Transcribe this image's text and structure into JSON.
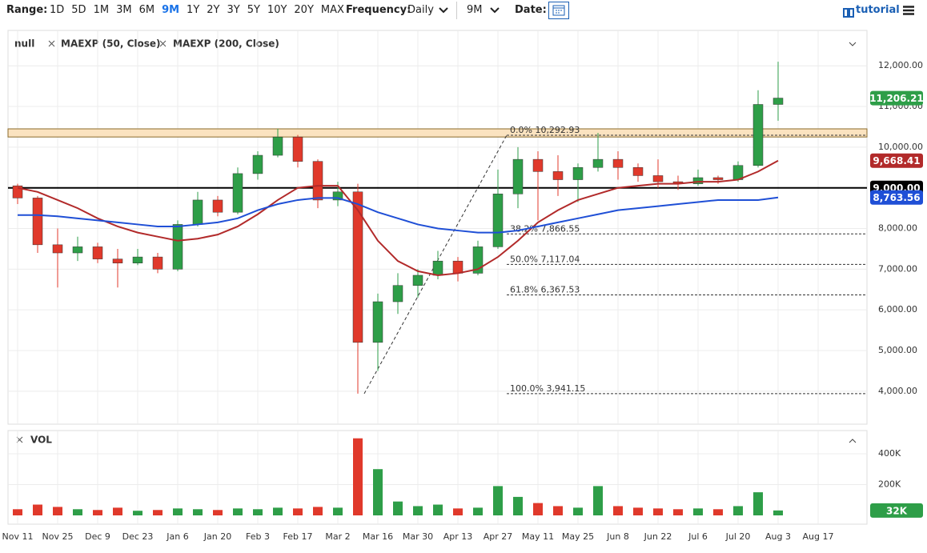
{
  "toolbar": {
    "range_label": "Range:",
    "ranges": [
      "1D",
      "5D",
      "1M",
      "3M",
      "6M",
      "9M",
      "1Y",
      "2Y",
      "3Y",
      "5Y",
      "10Y",
      "20Y",
      "MAX"
    ],
    "active_range": "9M",
    "frequency_label": "Frequency:",
    "frequency": "Daily",
    "period": "9M",
    "date_label": "Date:",
    "tutorial": "tutorial"
  },
  "chart_data": [
    {
      "type": "candlestick",
      "series_name": "null",
      "categories": [
        "Nov 11",
        null,
        "Nov 25",
        null,
        "Dec 9",
        null,
        "Dec 23",
        null,
        "Jan 6",
        null,
        "Jan 20",
        null,
        "Feb 3",
        null,
        "Feb 17",
        null,
        "Mar 2",
        null,
        "Mar 16",
        null,
        "Mar 30",
        null,
        "Apr 13",
        null,
        "Apr 27",
        null,
        "May 11",
        null,
        "May 25",
        null,
        "Jun 8",
        null,
        "Jun 22",
        null,
        "Jul 6",
        null,
        "Jul 20",
        null,
        "Aug 3",
        null,
        "Aug 17"
      ],
      "open": [
        9050,
        8750,
        7600,
        7400,
        7550,
        7250,
        7150,
        7300,
        7000,
        8100,
        8700,
        8400,
        9350,
        9800,
        10250,
        9650,
        8700,
        8900,
        5200,
        6200,
        6600,
        6850,
        7200,
        6900,
        7550,
        8850,
        9700,
        9400,
        9200,
        9500,
        9700,
        9500,
        9300,
        9150,
        9100,
        9250,
        9200,
        9550,
        11050,
        null,
        null
      ],
      "high": [
        9100,
        8800,
        8000,
        7800,
        7650,
        7500,
        7500,
        7400,
        8200,
        8900,
        8800,
        9500,
        9900,
        10450,
        10300,
        9700,
        9150,
        9100,
        6400,
        6900,
        7000,
        7450,
        7300,
        7700,
        9450,
        10000,
        9900,
        9800,
        9600,
        10350,
        9900,
        9600,
        9700,
        9300,
        9450,
        9300,
        9650,
        11400,
        12100,
        null,
        null
      ],
      "low": [
        8600,
        7400,
        6550,
        7200,
        7150,
        6550,
        7100,
        6900,
        6950,
        8050,
        8300,
        8350,
        9200,
        9750,
        9500,
        8500,
        8550,
        3941,
        4500,
        5900,
        6300,
        6750,
        6700,
        6850,
        7500,
        8500,
        8200,
        8800,
        8650,
        9400,
        9200,
        9150,
        9000,
        8950,
        9050,
        9100,
        9150,
        9500,
        10650,
        null,
        null
      ],
      "close": [
        8750,
        7600,
        7400,
        7550,
        7250,
        7150,
        7300,
        7000,
        8100,
        8700,
        8400,
        9350,
        9800,
        10250,
        9650,
        8700,
        8900,
        5200,
        6200,
        6600,
        6850,
        7200,
        6900,
        7550,
        8850,
        9700,
        9400,
        9200,
        9500,
        9700,
        9500,
        9300,
        9150,
        9100,
        9250,
        9200,
        9550,
        11050,
        11206.21,
        null,
        null
      ],
      "close_label": "11,206.21",
      "up_color": "#2e9e48",
      "down_color": "#e0392b",
      "series": [
        {
          "name": "MAEXP (50, Close)",
          "color": "#b22a2a",
          "last_label": "9,668.41",
          "values": [
            9000,
            8900,
            8700,
            8500,
            8250,
            8050,
            7900,
            7800,
            7700,
            7750,
            7850,
            8050,
            8350,
            8700,
            9000,
            9050,
            9050,
            8450,
            7700,
            7200,
            6950,
            6850,
            6900,
            7000,
            7300,
            7700,
            8150,
            8450,
            8700,
            8850,
            9000,
            9050,
            9100,
            9100,
            9150,
            9150,
            9200,
            9400,
            9668.41,
            null,
            null
          ]
        },
        {
          "name": "MAEXP (200, Close)",
          "color": "#1f4fd6",
          "last_label": "8,763.56",
          "values": [
            8330,
            8330,
            8300,
            8250,
            8200,
            8150,
            8100,
            8050,
            8050,
            8100,
            8150,
            8250,
            8450,
            8600,
            8700,
            8750,
            8750,
            8600,
            8400,
            8250,
            8100,
            8000,
            7950,
            7900,
            7900,
            7950,
            8050,
            8150,
            8250,
            8350,
            8450,
            8500,
            8550,
            8600,
            8650,
            8700,
            8700,
            8700,
            8763.56,
            null,
            null
          ]
        }
      ],
      "horizontal_line": {
        "value": 9000,
        "label": "9,000.00"
      },
      "resistance_zone": [
        10250,
        10450
      ],
      "fibonacci": [
        {
          "label": "0.0% 10,292.93",
          "value": 10292.93
        },
        {
          "label": "38.2% 7,866.55",
          "value": 7866.55
        },
        {
          "label": "50.0% 7,117.04",
          "value": 7117.04
        },
        {
          "label": "61.8% 6,367.53",
          "value": 6367.53
        },
        {
          "label": "100.0% 3,941.15",
          "value": 3941.15
        }
      ],
      "ylim": [
        3190,
        12870
      ],
      "yticks": [
        {
          "value": 4000,
          "label": "4,000.00"
        },
        {
          "value": 5000,
          "label": "5,000.00"
        },
        {
          "value": 6000,
          "label": "6,000.00"
        },
        {
          "value": 7000,
          "label": "7,000.00"
        },
        {
          "value": 8000,
          "label": "8,000.00"
        },
        {
          "value": 9000,
          "label": "9,000.00"
        },
        {
          "value": 10000,
          "label": "10,000.00"
        },
        {
          "value": 11000,
          "label": "11,000.00"
        },
        {
          "value": 12000,
          "label": "12,000.00"
        }
      ],
      "grid": true
    },
    {
      "type": "volume",
      "title": "VOL",
      "values": [
        40000,
        70000,
        55000,
        40000,
        35000,
        50000,
        30000,
        35000,
        45000,
        40000,
        35000,
        45000,
        40000,
        50000,
        45000,
        55000,
        50000,
        500000,
        300000,
        90000,
        60000,
        70000,
        45000,
        50000,
        190000,
        120000,
        80000,
        60000,
        50000,
        190000,
        60000,
        50000,
        45000,
        40000,
        45000,
        40000,
        60000,
        150000,
        32000,
        null,
        null
      ],
      "last_label": "32K",
      "ylim": [
        0,
        540000
      ],
      "yticks": [
        {
          "value": 200000,
          "label": "200K"
        },
        {
          "value": 400000,
          "label": "400K"
        }
      ],
      "grid": true
    }
  ]
}
